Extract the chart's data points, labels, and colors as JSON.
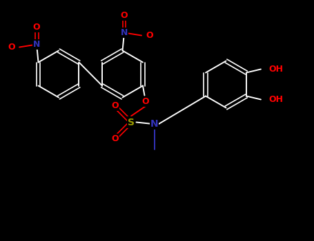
{
  "background_color": "#000000",
  "bond_color": "#ffffff",
  "atom_colors": {
    "O": "#ff0000",
    "N": "#3333bb",
    "S": "#999900",
    "C": "#ffffff",
    "H": "#ffffff"
  },
  "figsize": [
    4.55,
    3.5
  ],
  "dpi": 100,
  "xlim": [
    0,
    9.1
  ],
  "ylim": [
    0,
    7.0
  ]
}
